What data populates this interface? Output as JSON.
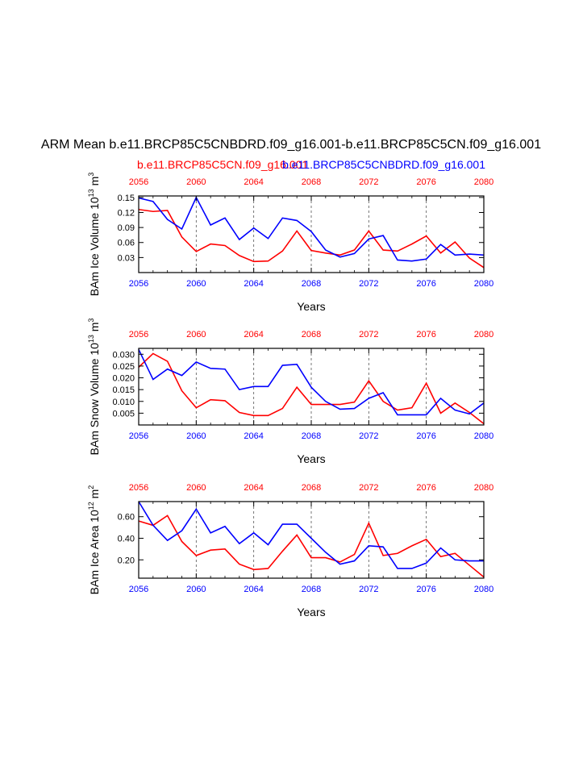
{
  "header": {
    "title": "ARM Mean b.e11.BRCP85C5CNBDRD.f09_g16.001-b.e11.BRCP85C5CN.f09_g16.001",
    "legend_red": "b.e11.BRCP85C5CN.f09_g16.001",
    "legend_blue": "b.e11.BRCP85C5CNBDRD.f09_g16.001"
  },
  "colors": {
    "red": "#ff0000",
    "blue": "#0000ff",
    "axis": "#000000",
    "grid": "#555555"
  },
  "chart_data": [
    {
      "type": "line",
      "title": "",
      "xlabel": "Years",
      "ylabel": {
        "base": "BAm Ice Volume 10",
        "exp": "13",
        "unit": " m",
        "unit_exp": "3"
      },
      "xlim": [
        2056,
        2080
      ],
      "ylim": [
        0.0,
        0.153
      ],
      "x_ticks": [
        2056,
        2060,
        2064,
        2068,
        2072,
        2076,
        2080
      ],
      "y_ticks": [
        0.03,
        0.06,
        0.09,
        0.12,
        0.15
      ],
      "y_tick_labels": [
        "0.03",
        "0.06",
        "0.09",
        "0.12",
        "0.15"
      ],
      "x": [
        2056,
        2057,
        2058,
        2059,
        2060,
        2061,
        2062,
        2063,
        2064,
        2065,
        2066,
        2067,
        2068,
        2069,
        2070,
        2071,
        2072,
        2073,
        2074,
        2075,
        2076,
        2077,
        2078,
        2079,
        2080
      ],
      "series": [
        {
          "name": "b.e11.BRCP85C5CN.f09_g16.001",
          "color": "#ff0000",
          "values": [
            0.126,
            0.122,
            0.124,
            0.071,
            0.042,
            0.057,
            0.054,
            0.034,
            0.022,
            0.023,
            0.043,
            0.083,
            0.044,
            0.039,
            0.035,
            0.045,
            0.083,
            0.045,
            0.043,
            0.057,
            0.073,
            0.039,
            0.061,
            0.029,
            0.01
          ]
        },
        {
          "name": "b.e11.BRCP85C5CNBDRD.f09_g16.001",
          "color": "#0000ff",
          "values": [
            0.149,
            0.142,
            0.106,
            0.087,
            0.15,
            0.095,
            0.109,
            0.066,
            0.089,
            0.068,
            0.109,
            0.104,
            0.082,
            0.045,
            0.031,
            0.038,
            0.067,
            0.074,
            0.025,
            0.023,
            0.027,
            0.056,
            0.035,
            0.037,
            0.035
          ]
        }
      ]
    },
    {
      "type": "line",
      "title": "",
      "xlabel": "Years",
      "ylabel": {
        "base": "BAm Snow Volume 10",
        "exp": "13",
        "unit": " m",
        "unit_exp": "3"
      },
      "xlim": [
        2056,
        2080
      ],
      "ylim": [
        0.0,
        0.0325
      ],
      "x_ticks": [
        2056,
        2060,
        2064,
        2068,
        2072,
        2076,
        2080
      ],
      "y_ticks": [
        0.005,
        0.01,
        0.015,
        0.02,
        0.025,
        0.03
      ],
      "y_tick_labels": [
        "0.005",
        "0.010",
        "0.015",
        "0.020",
        "0.025",
        "0.030"
      ],
      "x": [
        2056,
        2057,
        2058,
        2059,
        2060,
        2061,
        2062,
        2063,
        2064,
        2065,
        2066,
        2067,
        2068,
        2069,
        2070,
        2071,
        2072,
        2073,
        2074,
        2075,
        2076,
        2077,
        2078,
        2079,
        2080
      ],
      "series": [
        {
          "name": "b.e11.BRCP85C5CN.f09_g16.001",
          "color": "#ff0000",
          "values": [
            0.0245,
            0.0303,
            0.027,
            0.0145,
            0.0073,
            0.0107,
            0.0103,
            0.0053,
            0.004,
            0.004,
            0.007,
            0.016,
            0.0087,
            0.0087,
            0.0087,
            0.0097,
            0.0187,
            0.01,
            0.0063,
            0.0073,
            0.0177,
            0.005,
            0.0093,
            0.0053,
            0.0005
          ]
        },
        {
          "name": "b.e11.BRCP85C5CNBDRD.f09_g16.001",
          "color": "#0000ff",
          "values": [
            0.032,
            0.0193,
            0.0237,
            0.021,
            0.0267,
            0.024,
            0.0237,
            0.015,
            0.0163,
            0.0163,
            0.0253,
            0.0257,
            0.016,
            0.01,
            0.0067,
            0.007,
            0.0113,
            0.0137,
            0.0043,
            0.0043,
            0.0043,
            0.0113,
            0.0063,
            0.0047,
            0.0093
          ]
        }
      ]
    },
    {
      "type": "line",
      "title": "",
      "xlabel": "Years",
      "ylabel": {
        "base": "BAm Ice Area 10",
        "exp": "12",
        "unit": " m",
        "unit_exp": "2"
      },
      "xlim": [
        2056,
        2080
      ],
      "ylim": [
        0.03,
        0.74
      ],
      "x_ticks": [
        2056,
        2060,
        2064,
        2068,
        2072,
        2076,
        2080
      ],
      "y_ticks": [
        0.2,
        0.4,
        0.6
      ],
      "y_tick_labels": [
        "0.20",
        "0.40",
        "0.60"
      ],
      "x": [
        2056,
        2057,
        2058,
        2059,
        2060,
        2061,
        2062,
        2063,
        2064,
        2065,
        2066,
        2067,
        2068,
        2069,
        2070,
        2071,
        2072,
        2073,
        2074,
        2075,
        2076,
        2077,
        2078,
        2079,
        2080
      ],
      "series": [
        {
          "name": "b.e11.BRCP85C5CN.f09_g16.001",
          "color": "#ff0000",
          "values": [
            0.56,
            0.52,
            0.61,
            0.37,
            0.24,
            0.29,
            0.3,
            0.16,
            0.11,
            0.12,
            0.28,
            0.43,
            0.22,
            0.22,
            0.18,
            0.25,
            0.54,
            0.24,
            0.26,
            0.33,
            0.39,
            0.23,
            0.26,
            0.15,
            0.04
          ]
        },
        {
          "name": "b.e11.BRCP85C5CNBDRD.f09_g16.001",
          "color": "#0000ff",
          "values": [
            0.74,
            0.52,
            0.38,
            0.47,
            0.67,
            0.45,
            0.51,
            0.35,
            0.45,
            0.34,
            0.53,
            0.53,
            0.4,
            0.27,
            0.16,
            0.19,
            0.33,
            0.32,
            0.12,
            0.12,
            0.17,
            0.31,
            0.2,
            0.19,
            0.19
          ]
        }
      ]
    }
  ]
}
